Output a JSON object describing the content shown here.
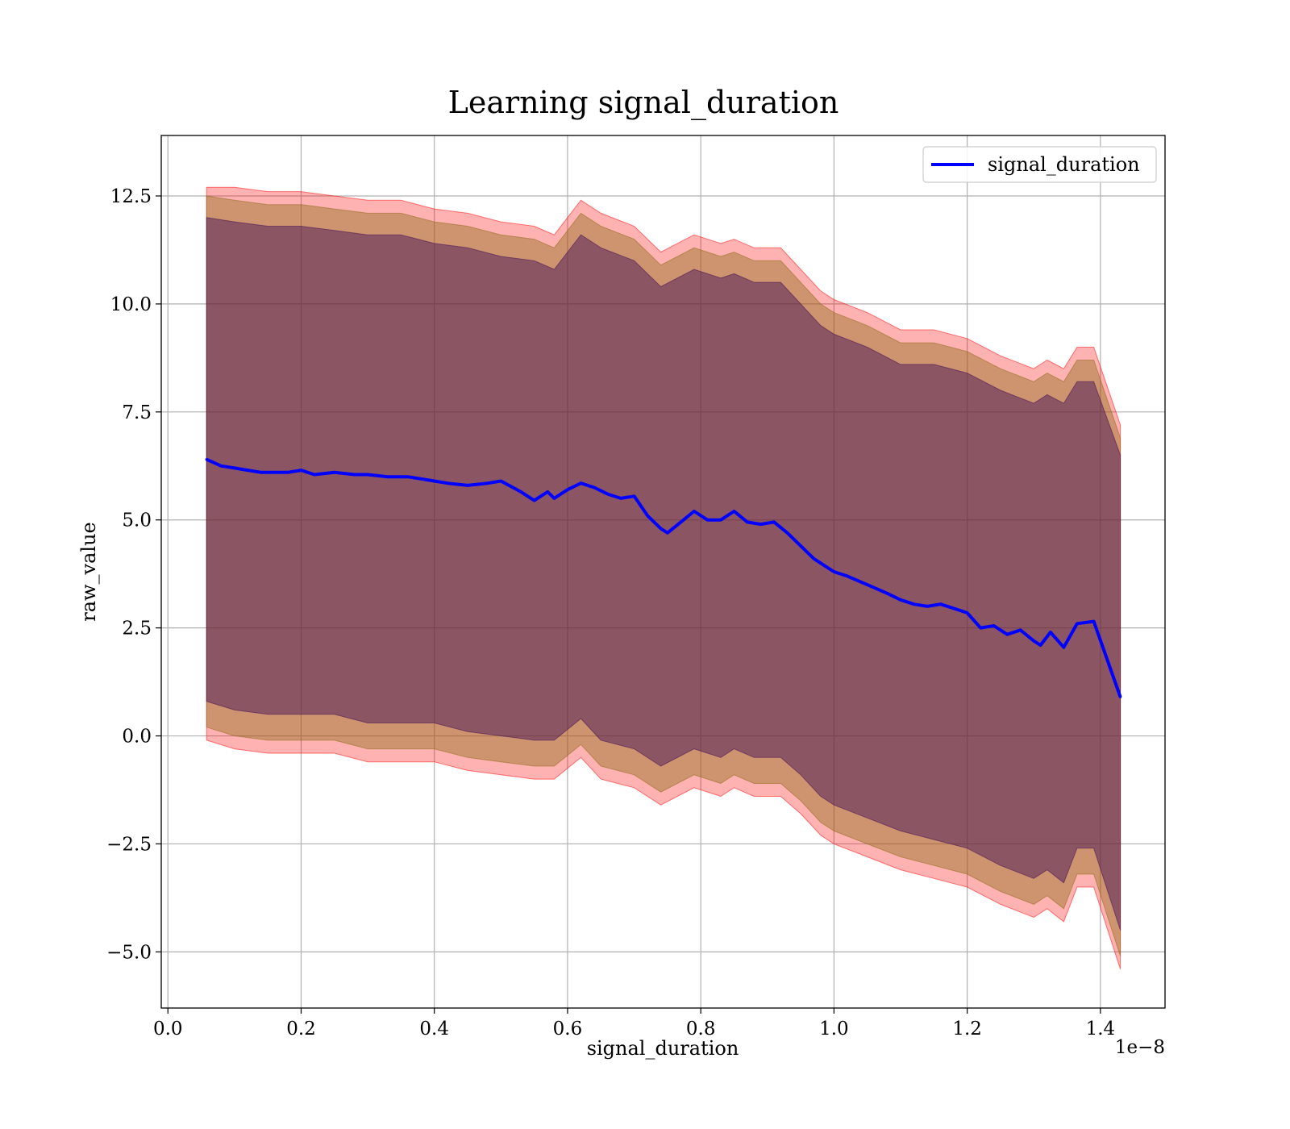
{
  "chart_data": {
    "type": "line",
    "title": "Learning signal_duration",
    "xlabel": "signal_duration",
    "ylabel": "raw_value",
    "x_offset_label": "1e−8",
    "xlim": [
      -0.01,
      1.497
    ],
    "ylim": [
      -6.3,
      13.9
    ],
    "x_ticks": [
      0.0,
      0.2,
      0.4,
      0.6,
      0.8,
      1.0,
      1.2,
      1.4
    ],
    "x_tick_labels": [
      "0.0",
      "0.2",
      "0.4",
      "0.6",
      "0.8",
      "1.0",
      "1.2",
      "1.4"
    ],
    "y_ticks": [
      -5.0,
      -2.5,
      0.0,
      2.5,
      5.0,
      7.5,
      10.0,
      12.5
    ],
    "y_tick_labels": [
      "−5.0",
      "−2.5",
      "0.0",
      "2.5",
      "5.0",
      "7.5",
      "10.0",
      "12.5"
    ],
    "grid": true,
    "legend_position": "top-right",
    "colors": {
      "line": "#0000ff",
      "outer_band": "#ff0000",
      "middle_band": "#8b6914",
      "inner_band": "#3b0a55"
    },
    "series": [
      {
        "name": "signal_duration",
        "x": [
          0.058,
          0.08,
          0.1,
          0.12,
          0.14,
          0.16,
          0.18,
          0.2,
          0.22,
          0.25,
          0.28,
          0.3,
          0.33,
          0.36,
          0.38,
          0.4,
          0.42,
          0.45,
          0.48,
          0.5,
          0.53,
          0.55,
          0.57,
          0.58,
          0.6,
          0.62,
          0.64,
          0.66,
          0.68,
          0.7,
          0.72,
          0.74,
          0.75,
          0.77,
          0.79,
          0.81,
          0.83,
          0.85,
          0.87,
          0.89,
          0.91,
          0.93,
          0.95,
          0.97,
          1.0,
          1.02,
          1.05,
          1.08,
          1.1,
          1.12,
          1.14,
          1.16,
          1.18,
          1.2,
          1.22,
          1.24,
          1.26,
          1.28,
          1.3,
          1.31,
          1.325,
          1.345,
          1.365,
          1.39,
          1.43
        ],
        "values": [
          6.4,
          6.25,
          6.2,
          6.15,
          6.1,
          6.1,
          6.1,
          6.15,
          6.05,
          6.1,
          6.05,
          6.05,
          6.0,
          6.0,
          5.95,
          5.9,
          5.85,
          5.8,
          5.85,
          5.9,
          5.65,
          5.45,
          5.65,
          5.5,
          5.7,
          5.85,
          5.75,
          5.6,
          5.5,
          5.55,
          5.1,
          4.8,
          4.7,
          4.95,
          5.2,
          5.0,
          5.0,
          5.2,
          4.95,
          4.9,
          4.95,
          4.7,
          4.4,
          4.1,
          3.8,
          3.7,
          3.5,
          3.3,
          3.15,
          3.05,
          3.0,
          3.05,
          2.95,
          2.85,
          2.5,
          2.55,
          2.35,
          2.45,
          2.2,
          2.1,
          2.4,
          2.05,
          2.6,
          2.65,
          0.9
        ]
      }
    ],
    "bands": [
      {
        "name": "outer",
        "x": [
          0.058,
          0.1,
          0.15,
          0.2,
          0.25,
          0.3,
          0.35,
          0.4,
          0.45,
          0.5,
          0.55,
          0.58,
          0.62,
          0.65,
          0.7,
          0.74,
          0.79,
          0.83,
          0.85,
          0.88,
          0.92,
          0.95,
          0.98,
          1.0,
          1.05,
          1.1,
          1.15,
          1.2,
          1.25,
          1.3,
          1.32,
          1.345,
          1.365,
          1.39,
          1.43
        ],
        "upper": [
          12.7,
          12.7,
          12.6,
          12.6,
          12.5,
          12.4,
          12.4,
          12.2,
          12.1,
          11.9,
          11.8,
          11.6,
          12.4,
          12.1,
          11.8,
          11.2,
          11.6,
          11.4,
          11.5,
          11.3,
          11.3,
          10.8,
          10.3,
          10.1,
          9.8,
          9.4,
          9.4,
          9.2,
          8.8,
          8.5,
          8.7,
          8.5,
          9.0,
          9.0,
          7.2
        ],
        "lower": [
          -0.1,
          -0.3,
          -0.4,
          -0.4,
          -0.4,
          -0.6,
          -0.6,
          -0.6,
          -0.8,
          -0.9,
          -1.0,
          -1.0,
          -0.5,
          -1.0,
          -1.2,
          -1.6,
          -1.2,
          -1.4,
          -1.2,
          -1.4,
          -1.4,
          -1.8,
          -2.3,
          -2.5,
          -2.8,
          -3.1,
          -3.3,
          -3.5,
          -3.9,
          -4.2,
          -4.0,
          -4.3,
          -3.5,
          -3.5,
          -5.4
        ]
      },
      {
        "name": "middle",
        "x": [
          0.058,
          0.1,
          0.15,
          0.2,
          0.25,
          0.3,
          0.35,
          0.4,
          0.45,
          0.5,
          0.55,
          0.58,
          0.62,
          0.65,
          0.7,
          0.74,
          0.79,
          0.83,
          0.85,
          0.88,
          0.92,
          0.95,
          0.98,
          1.0,
          1.05,
          1.1,
          1.15,
          1.2,
          1.25,
          1.3,
          1.32,
          1.345,
          1.365,
          1.39,
          1.43
        ],
        "upper": [
          12.5,
          12.4,
          12.3,
          12.3,
          12.2,
          12.1,
          12.1,
          11.9,
          11.8,
          11.6,
          11.5,
          11.3,
          12.1,
          11.8,
          11.5,
          10.9,
          11.3,
          11.1,
          11.2,
          11.0,
          11.0,
          10.5,
          10.0,
          9.8,
          9.5,
          9.1,
          9.1,
          8.9,
          8.5,
          8.2,
          8.4,
          8.2,
          8.7,
          8.7,
          6.9
        ],
        "lower": [
          0.2,
          0.0,
          -0.1,
          -0.1,
          -0.1,
          -0.3,
          -0.3,
          -0.3,
          -0.5,
          -0.6,
          -0.7,
          -0.7,
          -0.2,
          -0.7,
          -0.9,
          -1.3,
          -0.9,
          -1.1,
          -0.9,
          -1.1,
          -1.1,
          -1.5,
          -2.0,
          -2.2,
          -2.5,
          -2.8,
          -3.0,
          -3.2,
          -3.6,
          -3.9,
          -3.7,
          -4.0,
          -3.2,
          -3.2,
          -5.1
        ]
      },
      {
        "name": "inner",
        "x": [
          0.058,
          0.1,
          0.15,
          0.2,
          0.25,
          0.3,
          0.35,
          0.4,
          0.45,
          0.5,
          0.55,
          0.58,
          0.62,
          0.65,
          0.7,
          0.74,
          0.79,
          0.83,
          0.85,
          0.88,
          0.92,
          0.95,
          0.98,
          1.0,
          1.05,
          1.1,
          1.15,
          1.2,
          1.25,
          1.3,
          1.32,
          1.345,
          1.365,
          1.39,
          1.43
        ],
        "upper": [
          12.0,
          11.9,
          11.8,
          11.8,
          11.7,
          11.6,
          11.6,
          11.4,
          11.3,
          11.1,
          11.0,
          10.8,
          11.6,
          11.3,
          11.0,
          10.4,
          10.8,
          10.6,
          10.7,
          10.5,
          10.5,
          10.0,
          9.5,
          9.3,
          9.0,
          8.6,
          8.6,
          8.4,
          8.0,
          7.7,
          7.9,
          7.7,
          8.2,
          8.2,
          6.5
        ],
        "lower": [
          0.8,
          0.6,
          0.5,
          0.5,
          0.5,
          0.3,
          0.3,
          0.3,
          0.1,
          0.0,
          -0.1,
          -0.1,
          0.4,
          -0.1,
          -0.3,
          -0.7,
          -0.3,
          -0.5,
          -0.3,
          -0.5,
          -0.5,
          -0.9,
          -1.4,
          -1.6,
          -1.9,
          -2.2,
          -2.4,
          -2.6,
          -3.0,
          -3.3,
          -3.1,
          -3.4,
          -2.6,
          -2.6,
          -4.5
        ]
      }
    ]
  }
}
